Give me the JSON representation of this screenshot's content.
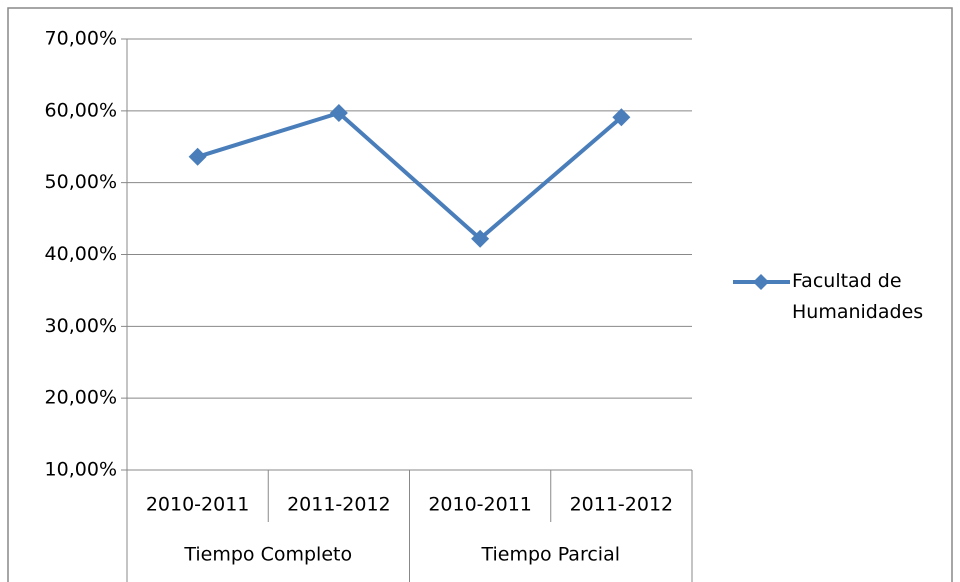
{
  "chart_data": {
    "type": "line",
    "categories": [
      "2010-2011",
      "2011-2012",
      "2010-2011",
      "2011-2012"
    ],
    "category_groups": [
      {
        "name": "Tiempo Completo",
        "span": 2
      },
      {
        "name": "Tiempo Parcial",
        "span": 2
      }
    ],
    "series": [
      {
        "name": "Facultad de Humanidades",
        "color": "#4a7ebb",
        "values": [
          53.6,
          59.7,
          42.2,
          59.1
        ]
      }
    ],
    "ylim": [
      10,
      70
    ],
    "yticks": [
      {
        "value": 10,
        "label": "10,00%"
      },
      {
        "value": 20,
        "label": "20,00%"
      },
      {
        "value": 30,
        "label": "30,00%"
      },
      {
        "value": 40,
        "label": "40,00%"
      },
      {
        "value": 50,
        "label": "50,00%"
      },
      {
        "value": 60,
        "label": "60,00%"
      },
      {
        "value": 70,
        "label": "70,00%"
      }
    ],
    "grid": true,
    "legend": "right"
  }
}
